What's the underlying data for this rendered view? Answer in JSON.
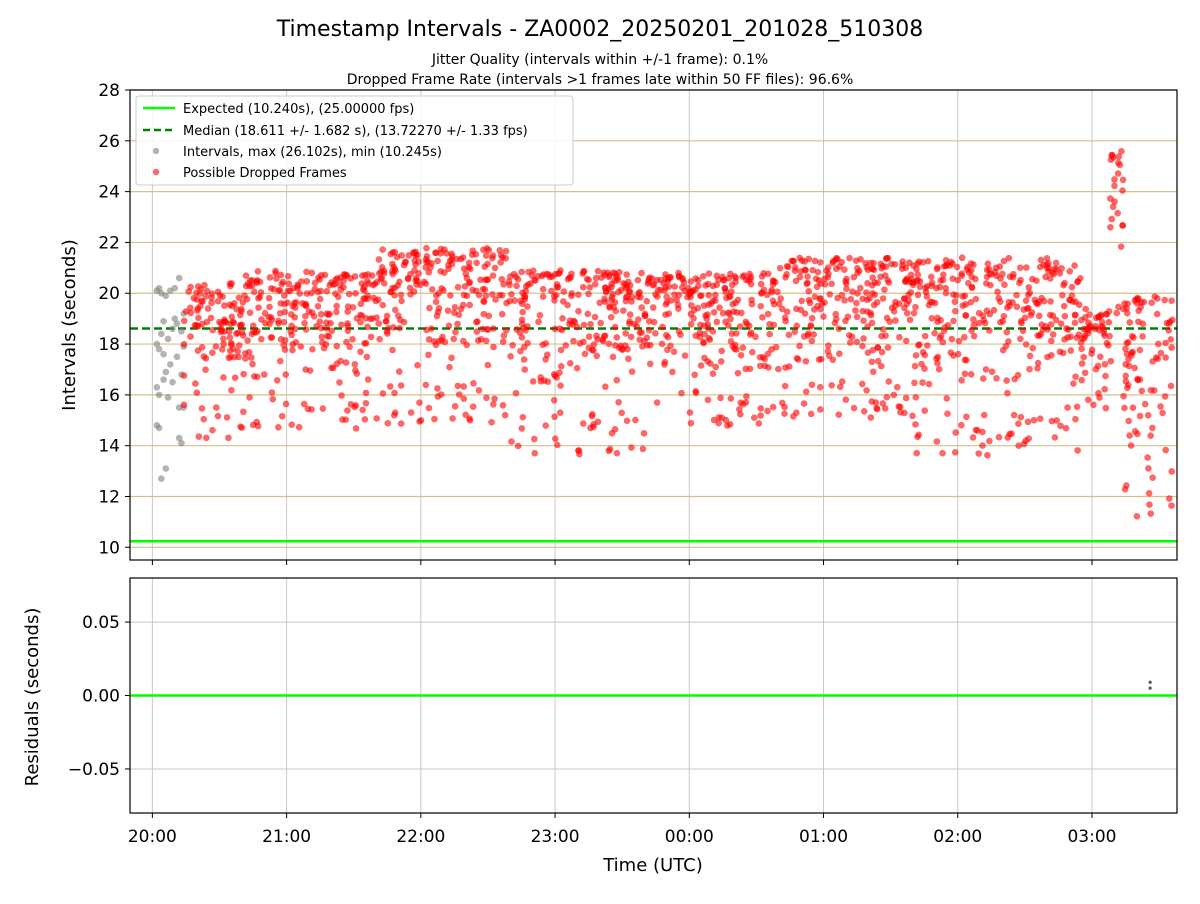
{
  "chart_data": [
    {
      "type": "scatter",
      "title": "Timestamp Intervals - ZA0002_20250201_201028_510308",
      "subtitle_lines": [
        "Jitter Quality (intervals within +/-1 frame): 0.1%",
        "Dropped Frame Rate (intervals >1 frames late within 50 FF files): 96.6%"
      ],
      "ylabel": "Intervals (seconds)",
      "xlabel": "",
      "ylim": [
        9.5,
        28
      ],
      "xlim": [
        "19:50",
        "03:38"
      ],
      "yticks": [
        "10",
        "12",
        "14",
        "16",
        "18",
        "20",
        "22",
        "24",
        "26",
        "28"
      ],
      "grid": true,
      "legend_position": "top-left",
      "legend": [
        "Expected (10.240s), (25.00000 fps)",
        "Median (18.611 +/- 1.682 s), (13.72270 +/- 1.33 fps)",
        "Intervals, max (26.102s), min (10.245s)",
        "Possible Dropped Frames"
      ],
      "colors": {
        "expected": "#00ff00",
        "median": "#008000",
        "intervals": "#808080",
        "dropped": "#ff0000",
        "grid_gold": "#d4c08a"
      },
      "lines": {
        "expected_y": 10.24,
        "median_y": 18.611
      },
      "series": [
        {
          "name": "Intervals, max (26.102s), min (10.245s)",
          "marker": "gray-dot",
          "points": [
            [
              "20:02",
              20.1
            ],
            [
              "20:02",
              14.8
            ],
            [
              "20:02",
              16.3
            ],
            [
              "20:02",
              18.0
            ],
            [
              "20:03",
              20.2
            ],
            [
              "20:03",
              14.7
            ],
            [
              "20:03",
              16.0
            ],
            [
              "20:03",
              17.8
            ],
            [
              "20:04",
              18.4
            ],
            [
              "20:04",
              12.7
            ],
            [
              "20:04",
              20.0
            ],
            [
              "20:05",
              16.6
            ],
            [
              "20:05",
              17.6
            ],
            [
              "20:05",
              18.9
            ],
            [
              "20:06",
              19.9
            ],
            [
              "20:06",
              16.9
            ],
            [
              "20:06",
              13.1
            ],
            [
              "20:07",
              18.2
            ],
            [
              "20:07",
              15.9
            ],
            [
              "20:08",
              20.1
            ],
            [
              "20:08",
              17.2
            ],
            [
              "20:09",
              18.6
            ],
            [
              "20:09",
              16.5
            ],
            [
              "20:10",
              19.0
            ],
            [
              "20:10",
              20.2
            ],
            [
              "20:11",
              17.5
            ],
            [
              "20:11",
              18.8
            ],
            [
              "20:12",
              15.5
            ],
            [
              "20:12",
              20.6
            ],
            [
              "20:12",
              14.3
            ],
            [
              "20:13",
              16.8
            ],
            [
              "20:13",
              18.5
            ],
            [
              "20:13",
              14.1
            ],
            [
              "20:14",
              17.9
            ],
            [
              "20:14",
              15.5
            ],
            [
              "20:14",
              19.2
            ]
          ]
        },
        {
          "name": "Possible Dropped Frames",
          "marker": "red-dot",
          "clusters": [
            {
              "from": "20:14",
              "to": "20:40",
              "y_range": [
                13.6,
                20.4
              ]
            },
            {
              "from": "20:40",
              "to": "21:40",
              "y_range": [
                14.1,
                20.9
              ]
            },
            {
              "from": "21:40",
              "to": "22:40",
              "y_range": [
                14.2,
                21.8
              ]
            },
            {
              "from": "22:40",
              "to": "23:40",
              "y_range": [
                13.0,
                20.9
              ]
            },
            {
              "from": "23:40",
              "to": "00:40",
              "y_range": [
                14.2,
                20.8
              ]
            },
            {
              "from": "00:40",
              "to": "01:40",
              "y_range": [
                14.5,
                21.4
              ]
            },
            {
              "from": "01:40",
              "to": "02:40",
              "y_range": [
                12.8,
                21.4
              ]
            },
            {
              "from": "02:40",
              "to": "02:55",
              "y_range": [
                13.1,
                21.2
              ]
            },
            {
              "from": "02:55",
              "to": "03:08",
              "y_range": [
                15.0,
                19.4
              ]
            },
            {
              "from": "03:08",
              "to": "03:14",
              "y_range": [
                14.6,
                26.1
              ]
            },
            {
              "from": "03:14",
              "to": "03:36",
              "y_range": [
                10.2,
                19.9
              ]
            }
          ]
        }
      ]
    },
    {
      "type": "scatter",
      "ylabel": "Residuals (seconds)",
      "xlabel": "Time (UTC)",
      "ylim": [
        -0.08,
        0.08
      ],
      "yticks": [
        "−0.05",
        "0.00",
        "0.05"
      ],
      "xticks": [
        "20:00",
        "21:00",
        "22:00",
        "23:00",
        "00:00",
        "01:00",
        "02:00",
        "03:00"
      ],
      "grid": true,
      "lines": {
        "zero_y": 0.0
      },
      "points": [
        [
          "03:26",
          0.005
        ],
        [
          "03:26",
          0.009
        ]
      ]
    }
  ]
}
